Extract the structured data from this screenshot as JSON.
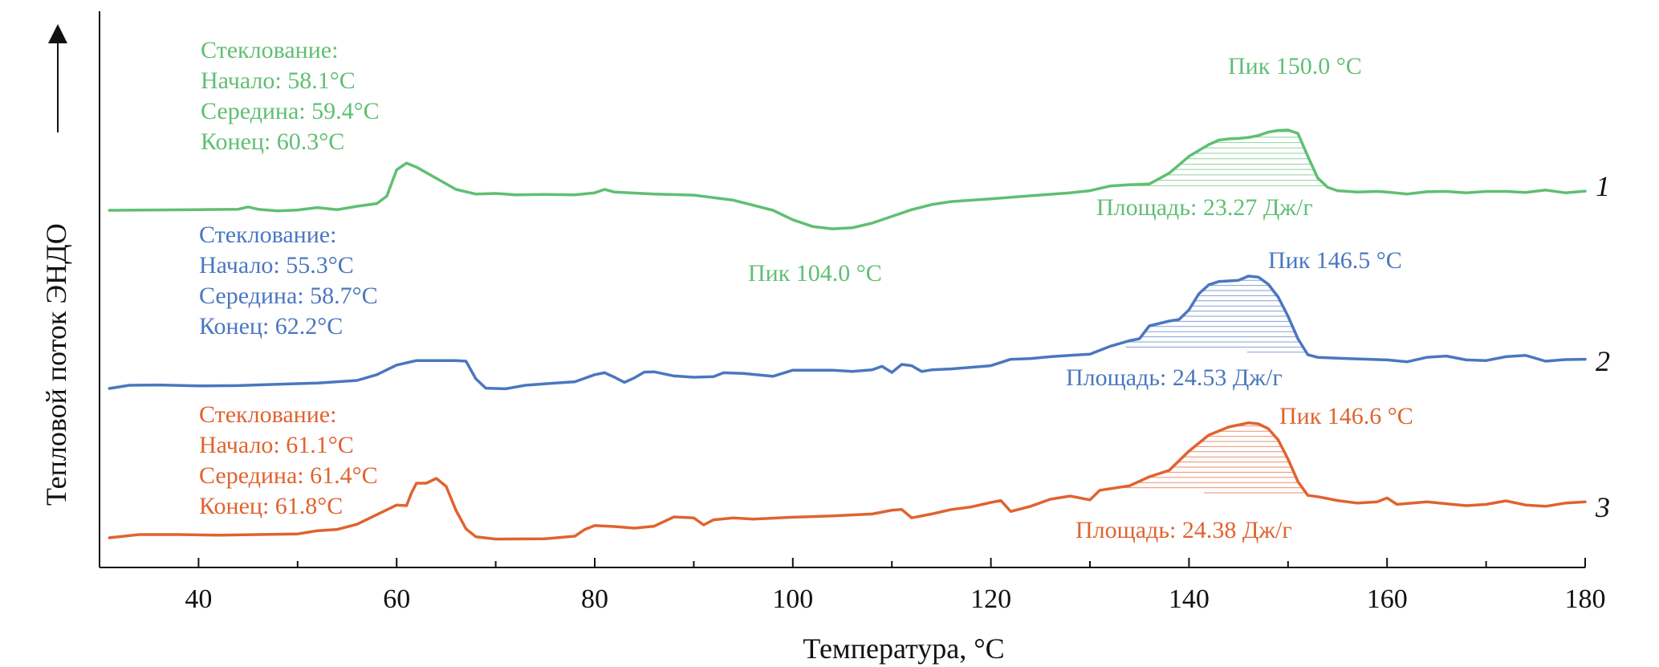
{
  "chart_data": {
    "type": "line",
    "title": "",
    "xlabel": "Температура, °C",
    "ylabel": "Тепловой поток ЭНДО",
    "xlim": [
      30,
      180
    ],
    "x_ticks": [
      "40",
      "60",
      "80",
      "100",
      "120",
      "140",
      "160",
      "180"
    ],
    "x_tick_values": [
      40,
      60,
      80,
      100,
      120,
      140,
      160,
      180
    ],
    "y_units": "relative heat flow (arbitrary), curves offset vertically",
    "grid": false,
    "series": [
      {
        "name": "1",
        "color": "#5fbf73",
        "glass_transition": [
          "Стеклование:",
          "Начало: 58.1°C",
          "Середина: 59.4°C",
          "Конец: 60.3°C"
        ],
        "peak_labels": [
          "Пик 150.0 °C",
          "Пик 104.0 °C"
        ],
        "area_label": "Площадь: 23.27 Дж/г",
        "shaded_range": [
          131,
          154
        ],
        "points": [
          [
            31,
            0.0
          ],
          [
            40,
            0.02
          ],
          [
            44,
            0.03
          ],
          [
            45,
            0.1
          ],
          [
            46,
            0.03
          ],
          [
            48,
            -0.02
          ],
          [
            50,
            0.01
          ],
          [
            52,
            0.08
          ],
          [
            54,
            0.02
          ],
          [
            56,
            0.12
          ],
          [
            58,
            0.2
          ],
          [
            59,
            0.42
          ],
          [
            60,
            1.2
          ],
          [
            61,
            1.4
          ],
          [
            62,
            1.28
          ],
          [
            64,
            0.95
          ],
          [
            66,
            0.62
          ],
          [
            68,
            0.48
          ],
          [
            70,
            0.5
          ],
          [
            72,
            0.46
          ],
          [
            75,
            0.47
          ],
          [
            78,
            0.46
          ],
          [
            80,
            0.52
          ],
          [
            81,
            0.62
          ],
          [
            82,
            0.54
          ],
          [
            86,
            0.48
          ],
          [
            90,
            0.45
          ],
          [
            94,
            0.3
          ],
          [
            96,
            0.15
          ],
          [
            98,
            0.0
          ],
          [
            100,
            -0.28
          ],
          [
            102,
            -0.48
          ],
          [
            104,
            -0.55
          ],
          [
            106,
            -0.52
          ],
          [
            108,
            -0.38
          ],
          [
            110,
            -0.18
          ],
          [
            112,
            0.02
          ],
          [
            114,
            0.17
          ],
          [
            116,
            0.26
          ],
          [
            120,
            0.34
          ],
          [
            124,
            0.43
          ],
          [
            128,
            0.52
          ],
          [
            130,
            0.58
          ],
          [
            132,
            0.72
          ],
          [
            134,
            0.76
          ],
          [
            136,
            0.78
          ],
          [
            138,
            1.1
          ],
          [
            140,
            1.6
          ],
          [
            142,
            1.95
          ],
          [
            143,
            2.08
          ],
          [
            144,
            2.12
          ],
          [
            145,
            2.13
          ],
          [
            146,
            2.16
          ],
          [
            147,
            2.22
          ],
          [
            148,
            2.32
          ],
          [
            149,
            2.37
          ],
          [
            150,
            2.38
          ],
          [
            151,
            2.28
          ],
          [
            152,
            1.6
          ],
          [
            153,
            0.96
          ],
          [
            154,
            0.68
          ],
          [
            155,
            0.58
          ],
          [
            157,
            0.54
          ],
          [
            159,
            0.56
          ],
          [
            160,
            0.54
          ],
          [
            162,
            0.48
          ],
          [
            164,
            0.55
          ],
          [
            166,
            0.56
          ],
          [
            168,
            0.52
          ],
          [
            170,
            0.56
          ],
          [
            172,
            0.56
          ],
          [
            174,
            0.53
          ],
          [
            176,
            0.6
          ],
          [
            178,
            0.52
          ],
          [
            180,
            0.57
          ]
        ]
      },
      {
        "name": "2",
        "color": "#4a77bf",
        "glass_transition": [
          "Стеклование:",
          "Начало: 55.3°C",
          "Середина: 58.7°C",
          "Конец: 62.2°C"
        ],
        "peak_labels": [
          "Пик 146.5 °C"
        ],
        "area_label": "Площадь: 24.53 Дж/г",
        "shaded_range": [
          132,
          152
        ],
        "points": [
          [
            31,
            -0.05
          ],
          [
            33,
            0.05
          ],
          [
            36,
            0.06
          ],
          [
            40,
            0.03
          ],
          [
            44,
            0.04
          ],
          [
            48,
            0.08
          ],
          [
            52,
            0.12
          ],
          [
            56,
            0.2
          ],
          [
            58,
            0.38
          ],
          [
            60,
            0.68
          ],
          [
            62,
            0.82
          ],
          [
            64,
            0.82
          ],
          [
            66,
            0.82
          ],
          [
            67,
            0.8
          ],
          [
            68,
            0.25
          ],
          [
            69,
            -0.04
          ],
          [
            71,
            -0.06
          ],
          [
            73,
            0.05
          ],
          [
            76,
            0.12
          ],
          [
            78,
            0.16
          ],
          [
            80,
            0.38
          ],
          [
            81,
            0.44
          ],
          [
            82,
            0.3
          ],
          [
            83,
            0.14
          ],
          [
            84,
            0.28
          ],
          [
            85,
            0.46
          ],
          [
            86,
            0.47
          ],
          [
            88,
            0.34
          ],
          [
            90,
            0.3
          ],
          [
            92,
            0.32
          ],
          [
            93,
            0.44
          ],
          [
            95,
            0.42
          ],
          [
            97,
            0.36
          ],
          [
            98,
            0.33
          ],
          [
            100,
            0.52
          ],
          [
            104,
            0.52
          ],
          [
            106,
            0.48
          ],
          [
            108,
            0.53
          ],
          [
            109,
            0.64
          ],
          [
            110,
            0.45
          ],
          [
            111,
            0.7
          ],
          [
            112,
            0.66
          ],
          [
            113,
            0.48
          ],
          [
            114,
            0.53
          ],
          [
            116,
            0.56
          ],
          [
            120,
            0.66
          ],
          [
            122,
            0.86
          ],
          [
            124,
            0.88
          ],
          [
            126,
            0.94
          ],
          [
            128,
            0.98
          ],
          [
            130,
            1.02
          ],
          [
            132,
            1.26
          ],
          [
            134,
            1.44
          ],
          [
            135,
            1.5
          ],
          [
            136,
            1.9
          ],
          [
            138,
            2.05
          ],
          [
            139,
            2.1
          ],
          [
            140,
            2.4
          ],
          [
            141,
            2.9
          ],
          [
            142,
            3.18
          ],
          [
            143,
            3.28
          ],
          [
            144,
            3.3
          ],
          [
            145,
            3.32
          ],
          [
            146,
            3.45
          ],
          [
            147,
            3.42
          ],
          [
            148,
            3.2
          ],
          [
            149,
            2.8
          ],
          [
            150,
            2.2
          ],
          [
            151,
            1.5
          ],
          [
            152,
            1.0
          ],
          [
            153,
            0.92
          ],
          [
            156,
            0.88
          ],
          [
            160,
            0.84
          ],
          [
            162,
            0.78
          ],
          [
            164,
            0.92
          ],
          [
            166,
            0.96
          ],
          [
            168,
            0.84
          ],
          [
            170,
            0.82
          ],
          [
            172,
            0.94
          ],
          [
            174,
            0.98
          ],
          [
            176,
            0.8
          ],
          [
            178,
            0.85
          ],
          [
            180,
            0.86
          ]
        ]
      },
      {
        "name": "3",
        "color": "#e0632e",
        "glass_transition": [
          "Стеклование:",
          "Начало: 61.1°C",
          "Середина: 61.4°C",
          "Конец: 61.8°C"
        ],
        "peak_labels": [
          "Пик 146.6 °C"
        ],
        "area_label": "Площадь: 24.38 Дж/г",
        "shaded_range": [
          131,
          152
        ],
        "points": [
          [
            31,
            0.0
          ],
          [
            34,
            0.1
          ],
          [
            38,
            0.1
          ],
          [
            42,
            0.08
          ],
          [
            46,
            0.1
          ],
          [
            50,
            0.12
          ],
          [
            52,
            0.22
          ],
          [
            54,
            0.26
          ],
          [
            56,
            0.42
          ],
          [
            58,
            0.72
          ],
          [
            60,
            1.02
          ],
          [
            61,
            1.0
          ],
          [
            61.5,
            1.4
          ],
          [
            62,
            1.7
          ],
          [
            63,
            1.7
          ],
          [
            64,
            1.85
          ],
          [
            65,
            1.6
          ],
          [
            66,
            0.85
          ],
          [
            67,
            0.28
          ],
          [
            68,
            0.03
          ],
          [
            70,
            -0.04
          ],
          [
            75,
            -0.03
          ],
          [
            78,
            0.05
          ],
          [
            79,
            0.26
          ],
          [
            80,
            0.38
          ],
          [
            82,
            0.35
          ],
          [
            84,
            0.3
          ],
          [
            86,
            0.36
          ],
          [
            88,
            0.65
          ],
          [
            90,
            0.62
          ],
          [
            91,
            0.4
          ],
          [
            92,
            0.56
          ],
          [
            94,
            0.62
          ],
          [
            96,
            0.58
          ],
          [
            100,
            0.64
          ],
          [
            104,
            0.68
          ],
          [
            108,
            0.74
          ],
          [
            110,
            0.86
          ],
          [
            111,
            0.88
          ],
          [
            112,
            0.62
          ],
          [
            114,
            0.74
          ],
          [
            116,
            0.88
          ],
          [
            118,
            0.96
          ],
          [
            120,
            1.1
          ],
          [
            121,
            1.16
          ],
          [
            122,
            0.82
          ],
          [
            124,
            0.98
          ],
          [
            126,
            1.2
          ],
          [
            128,
            1.3
          ],
          [
            130,
            1.18
          ],
          [
            131,
            1.48
          ],
          [
            134,
            1.62
          ],
          [
            136,
            1.9
          ],
          [
            138,
            2.1
          ],
          [
            140,
            2.7
          ],
          [
            142,
            3.2
          ],
          [
            144,
            3.45
          ],
          [
            146,
            3.58
          ],
          [
            147,
            3.55
          ],
          [
            148,
            3.4
          ],
          [
            149,
            3.05
          ],
          [
            150,
            2.45
          ],
          [
            151,
            1.75
          ],
          [
            152,
            1.32
          ],
          [
            153,
            1.28
          ],
          [
            155,
            1.16
          ],
          [
            157,
            1.08
          ],
          [
            159,
            1.12
          ],
          [
            160,
            1.24
          ],
          [
            161,
            1.04
          ],
          [
            164,
            1.12
          ],
          [
            166,
            1.06
          ],
          [
            168,
            1.0
          ],
          [
            170,
            1.04
          ],
          [
            172,
            1.15
          ],
          [
            174,
            1.02
          ],
          [
            176,
            0.98
          ],
          [
            178,
            1.08
          ],
          [
            180,
            1.12
          ]
        ]
      }
    ]
  }
}
